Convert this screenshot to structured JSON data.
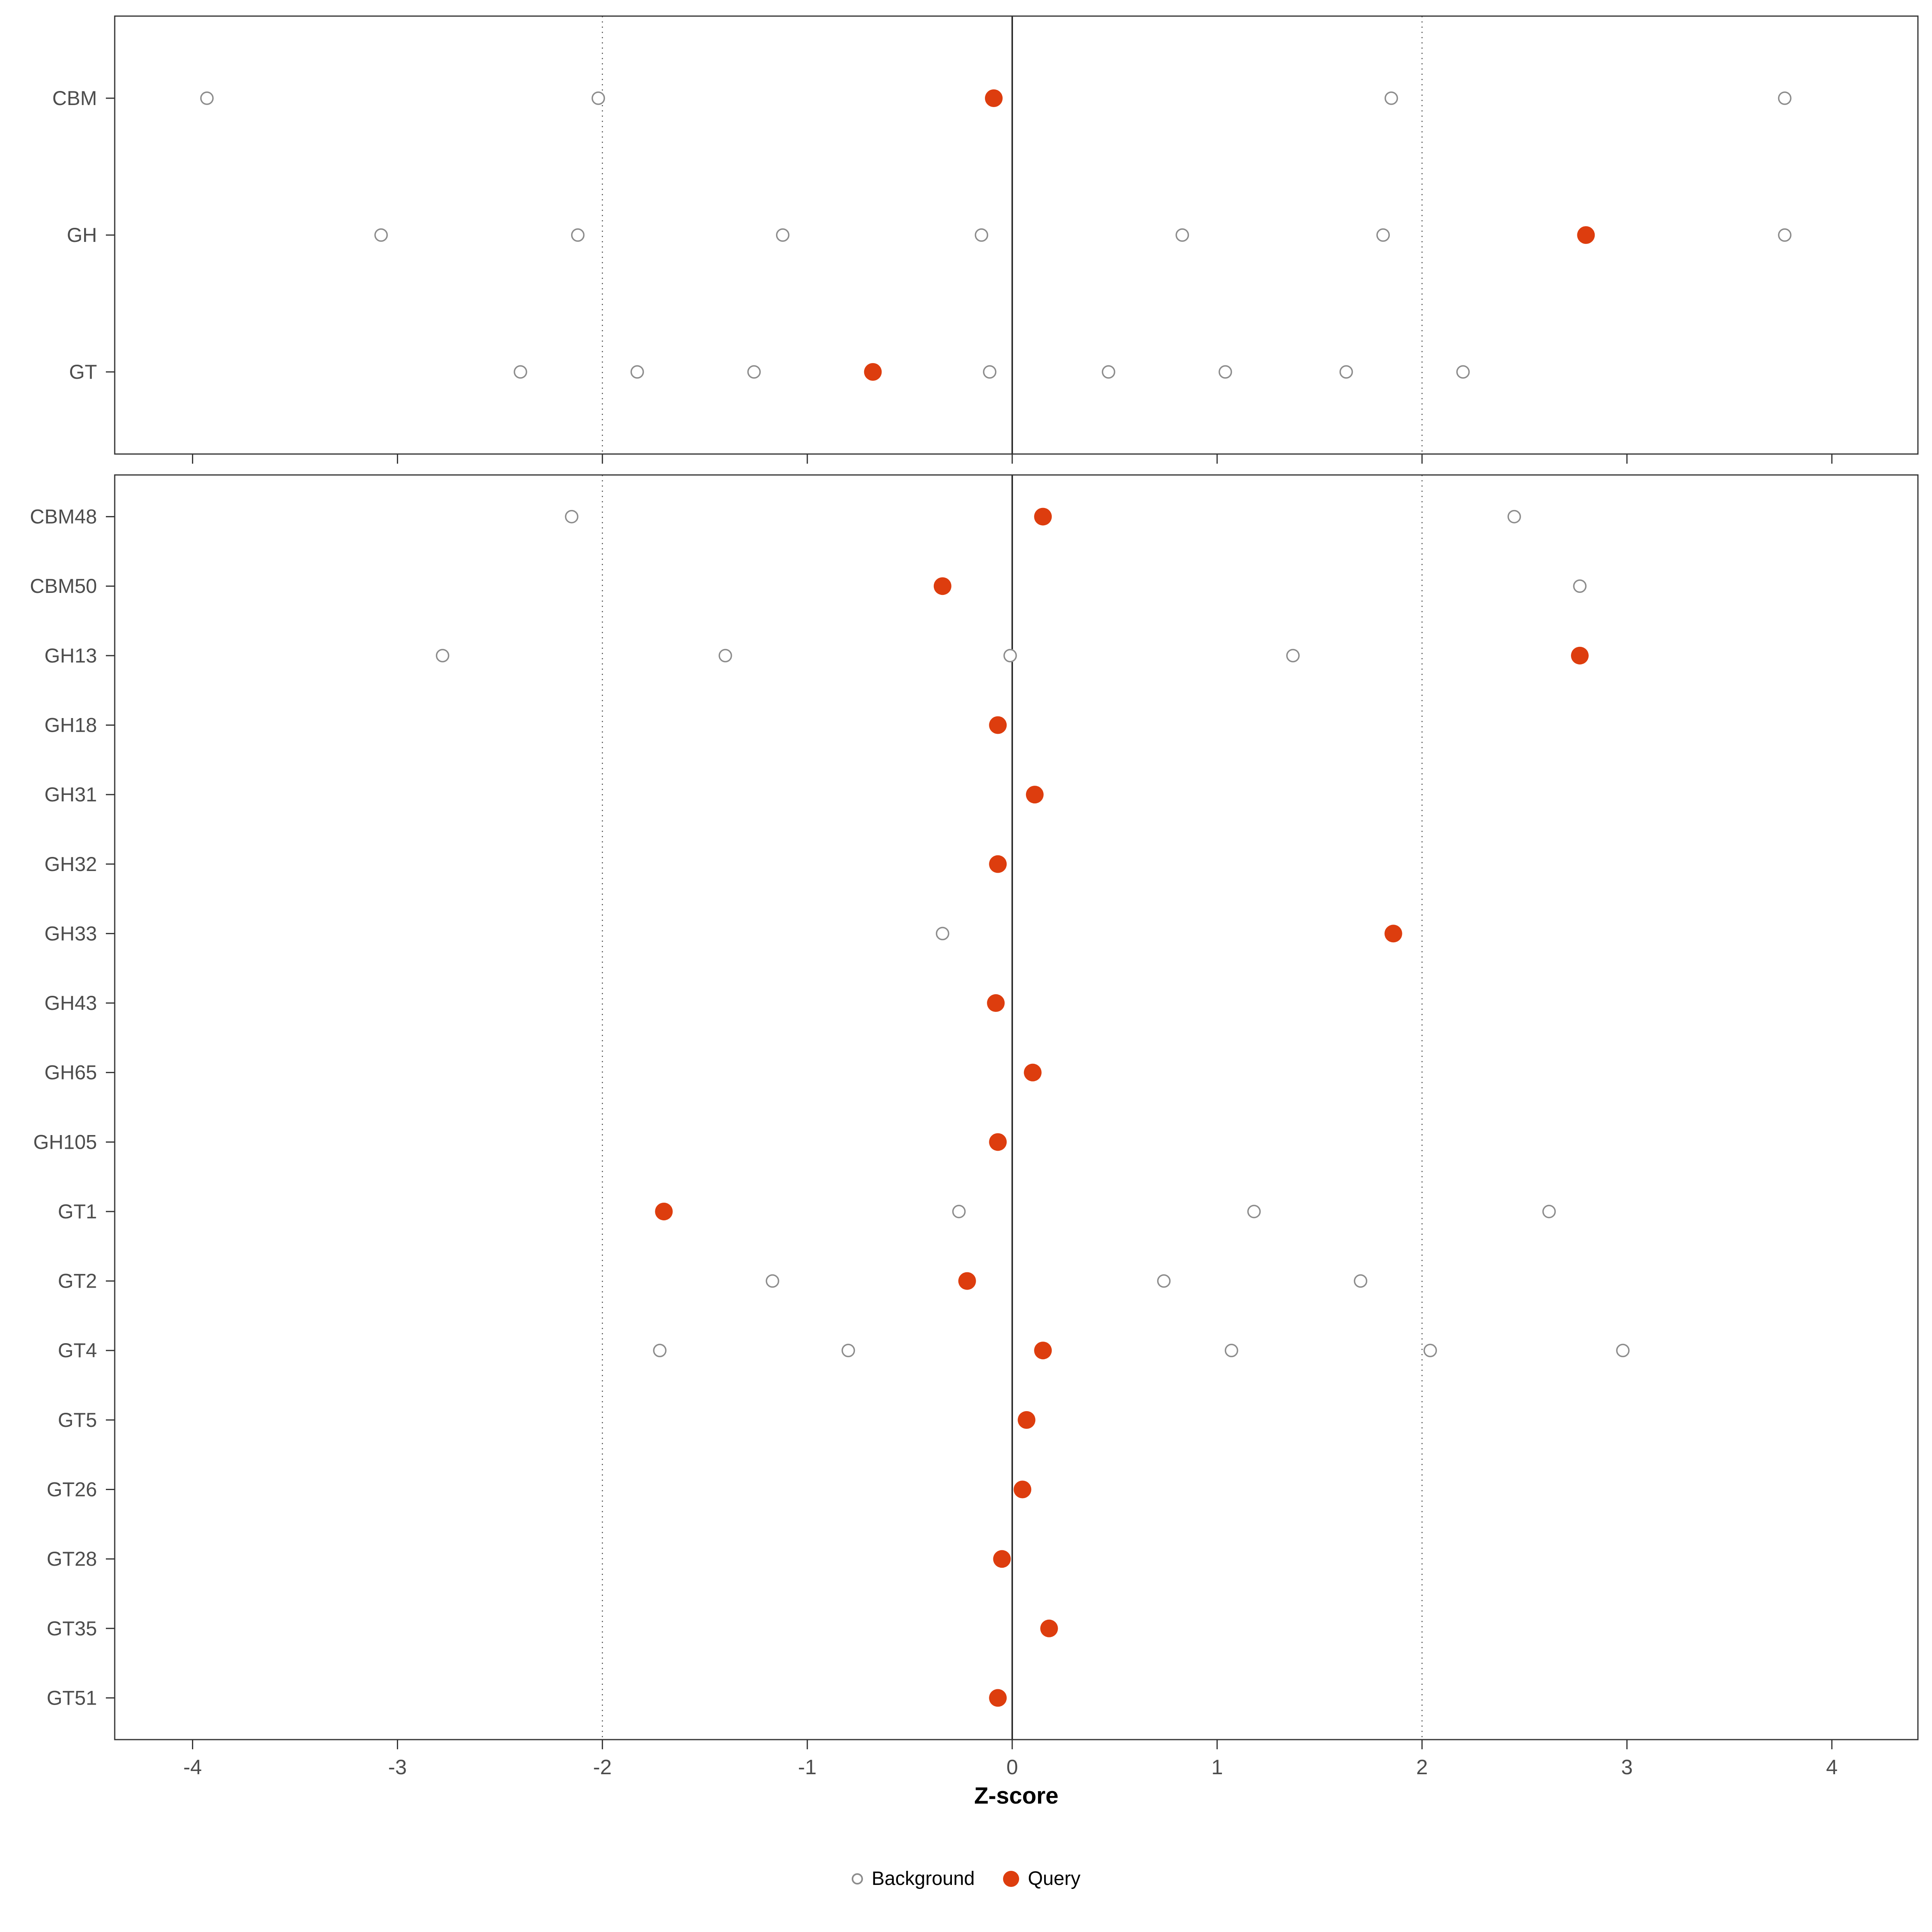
{
  "figure": {
    "xlabel": "Z-score"
  },
  "legend": {
    "background_label": "Background",
    "query_label": "Query"
  },
  "chart_data": {
    "type": "scatter",
    "title": "",
    "xlabel": "Z-score",
    "ylabel": "",
    "xlim": [
      -4.38,
      4.42
    ],
    "xticks": [
      -4,
      -3,
      -2,
      -1,
      0,
      1,
      2,
      3,
      4
    ],
    "grid": false,
    "legend_position": "bottom",
    "reference_lines": {
      "solid": [
        0
      ],
      "dotted": [
        -2,
        2
      ]
    },
    "series_styles": [
      {
        "name": "Background",
        "marker": "open-circle"
      },
      {
        "name": "Query",
        "marker": "filled-circle"
      }
    ],
    "colors": {
      "query": "#DD3D0E",
      "background_stroke": "#8C8C8C",
      "axis_text": "#4D4D4D",
      "panel_border": "#333333",
      "zero_line": "#1A1A1A",
      "dotted_line": "#555555"
    },
    "panels": [
      {
        "rows": [
          {
            "label": "CBM",
            "background": [
              -3.93,
              -2.02,
              1.85,
              3.77
            ],
            "query": -0.09
          },
          {
            "label": "GH",
            "background": [
              -3.08,
              -2.12,
              -1.12,
              -0.15,
              0.83,
              1.81,
              3.77
            ],
            "query": 2.8
          },
          {
            "label": "GT",
            "background": [
              -2.4,
              -1.83,
              -1.26,
              -0.11,
              0.47,
              1.04,
              1.63,
              2.2
            ],
            "query": -0.68
          }
        ]
      },
      {
        "rows": [
          {
            "label": "CBM48",
            "background": [
              -2.15,
              2.45
            ],
            "query": 0.15
          },
          {
            "label": "CBM50",
            "background": [
              2.77
            ],
            "query": -0.34
          },
          {
            "label": "GH13",
            "background": [
              -2.78,
              -1.4,
              -0.01,
              1.37
            ],
            "query": 2.77
          },
          {
            "label": "GH18",
            "background": [],
            "query": -0.07
          },
          {
            "label": "GH31",
            "background": [],
            "query": 0.11
          },
          {
            "label": "GH32",
            "background": [],
            "query": -0.07
          },
          {
            "label": "GH33",
            "background": [
              -0.34
            ],
            "query": 1.86
          },
          {
            "label": "GH43",
            "background": [],
            "query": -0.08
          },
          {
            "label": "GH65",
            "background": [],
            "query": 0.1
          },
          {
            "label": "GH105",
            "background": [],
            "query": -0.07
          },
          {
            "label": "GT1",
            "background": [
              -0.26,
              1.18,
              2.62
            ],
            "query": -1.7
          },
          {
            "label": "GT2",
            "background": [
              -1.17,
              0.74,
              1.7
            ],
            "query": -0.22
          },
          {
            "label": "GT4",
            "background": [
              -1.72,
              -0.8,
              1.07,
              2.04,
              2.98
            ],
            "query": 0.15
          },
          {
            "label": "GT5",
            "background": [],
            "query": 0.07
          },
          {
            "label": "GT26",
            "background": [],
            "query": 0.05
          },
          {
            "label": "GT28",
            "background": [],
            "query": -0.05
          },
          {
            "label": "GT35",
            "background": [],
            "query": 0.18
          },
          {
            "label": "GT51",
            "background": [],
            "query": -0.07
          }
        ]
      }
    ]
  }
}
